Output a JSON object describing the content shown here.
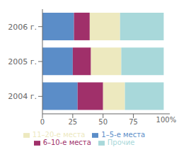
{
  "chart_data": {
    "type": "bar",
    "orientation": "horizontal",
    "stacked": true,
    "categories": [
      "2006 г.",
      "2005 г.",
      "2004 г."
    ],
    "series": [
      {
        "name": "1–5-е места",
        "color": "#5B8DC8",
        "values": [
          26,
          25,
          29
        ]
      },
      {
        "name": "6–10-е места",
        "color": "#A0306A",
        "values": [
          13,
          15,
          21
        ]
      },
      {
        "name": "11–20-е места",
        "color": "#EDE9BF",
        "values": [
          25,
          25,
          18
        ]
      },
      {
        "name": "Прочие",
        "color": "#A8D8DA",
        "values": [
          36,
          35,
          32
        ]
      }
    ],
    "xlim": [
      0,
      105
    ],
    "xticks": [
      0,
      25,
      50,
      75
    ],
    "grid": false,
    "legend": "bottom",
    "annotations": [
      {
        "text": "100%",
        "x": 102
      }
    ]
  }
}
